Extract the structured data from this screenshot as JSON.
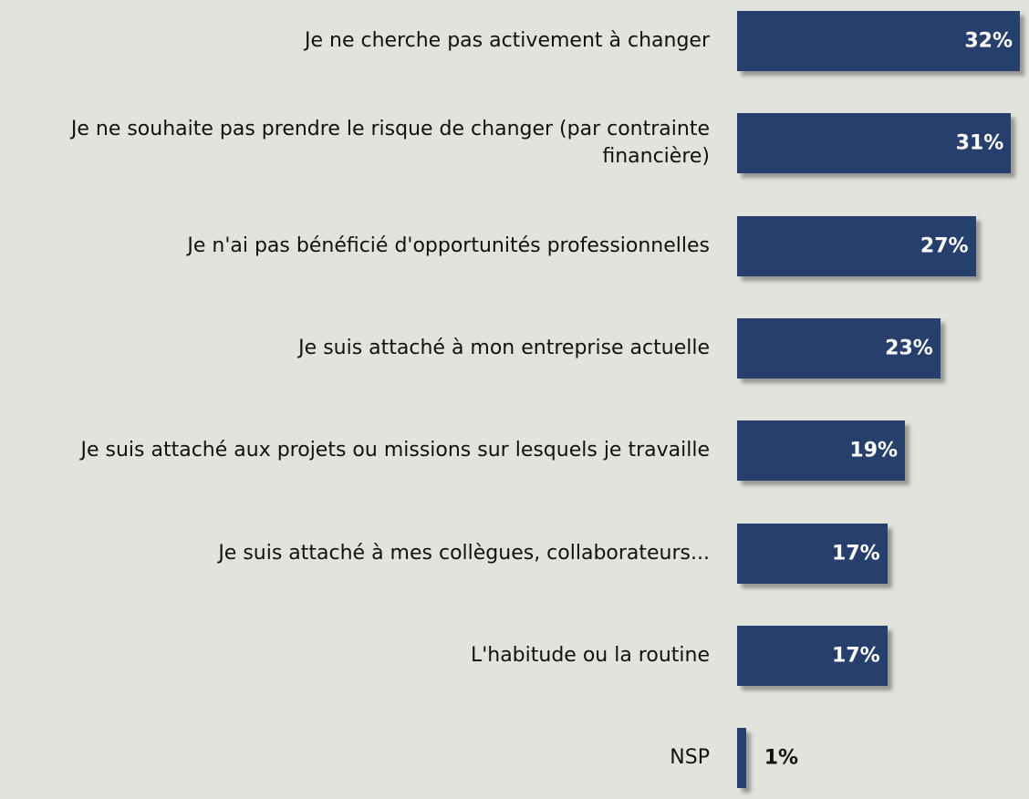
{
  "chart_data": {
    "type": "barh",
    "categories": [
      "Je ne cherche pas activement à changer",
      "Je ne souhaite pas prendre le risque de changer (par contrainte financière)",
      "Je n'ai pas bénéficié d'opportunités professionnelles",
      "Je suis attaché à mon entreprise actuelle",
      "Je suis attaché aux projets ou missions sur lesquels je travaille",
      "Je suis attaché à mes collègues, collaborateurs...",
      "L'habitude ou la routine",
      "NSP"
    ],
    "values": [
      32,
      31,
      27,
      23,
      19,
      17,
      17,
      1
    ],
    "value_labels": [
      "32%",
      "31%",
      "27%",
      "23%",
      "19%",
      "17%",
      "17%",
      "1%"
    ],
    "color": "#273f6c"
  }
}
